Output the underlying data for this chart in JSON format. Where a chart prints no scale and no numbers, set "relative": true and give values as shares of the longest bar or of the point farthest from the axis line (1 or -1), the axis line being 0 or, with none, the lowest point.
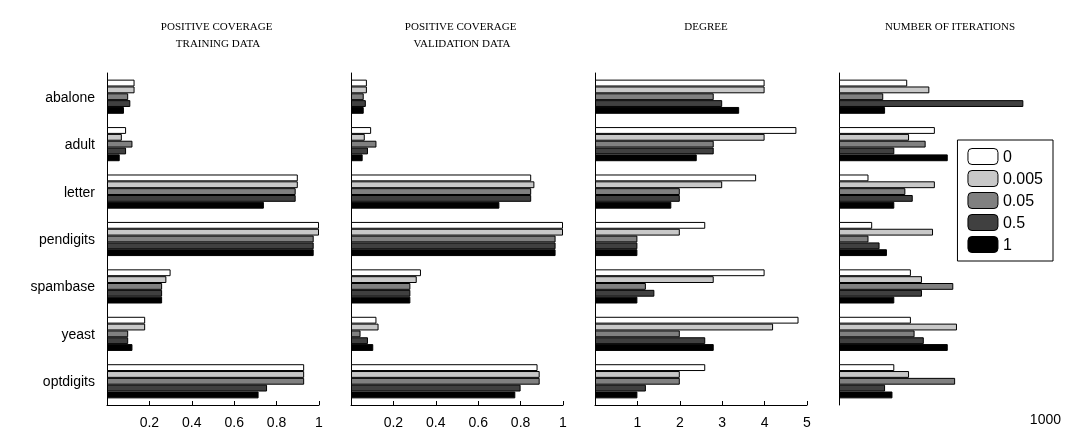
{
  "chart_data": [
    {
      "type": "bar",
      "orientation": "horizontal",
      "title": "POSITIVE COVERAGE TRAINING DATA",
      "categories": [
        "abalone",
        "adult",
        "letter",
        "pendigits",
        "spambase",
        "yeast",
        "optdigits"
      ],
      "xlim": [
        0,
        1
      ],
      "xticks": [
        0.2,
        0.4,
        0.6,
        0.8,
        1
      ],
      "grid": false,
      "legend": false,
      "series": [
        {
          "color": "#ffffff",
          "values": [
            0.13,
            0.09,
            0.9,
            1.0,
            0.3,
            0.18,
            0.93
          ]
        },
        {
          "color": "#c8c8c8",
          "values": [
            0.13,
            0.07,
            0.9,
            1.0,
            0.28,
            0.18,
            0.93
          ]
        },
        {
          "color": "#808080",
          "values": [
            0.1,
            0.12,
            0.89,
            0.975,
            0.26,
            0.1,
            0.93
          ]
        },
        {
          "color": "#404040",
          "values": [
            0.11,
            0.09,
            0.89,
            0.975,
            0.26,
            0.1,
            0.755
          ]
        },
        {
          "color": "#000000",
          "values": [
            0.08,
            0.06,
            0.74,
            0.975,
            0.26,
            0.12,
            0.715
          ]
        }
      ]
    },
    {
      "type": "bar",
      "orientation": "horizontal",
      "title": "POSITIVE COVERAGE VALIDATION DATA",
      "categories": [
        null,
        null,
        null,
        null,
        null,
        null,
        null
      ],
      "xlim": [
        0,
        1
      ],
      "xticks": [
        0.2,
        0.4,
        0.6,
        0.8,
        1
      ],
      "tick_labels": "x",
      "grid": false,
      "legend": false,
      "series": [
        {
          "color": "#ffffff",
          "values": [
            0.075,
            0.095,
            0.85,
            1.0,
            0.33,
            0.12,
            0.88
          ]
        },
        {
          "color": "#c8c8c8",
          "values": [
            0.075,
            0.065,
            0.865,
            1.0,
            0.31,
            0.13,
            0.89
          ]
        },
        {
          "color": "#808080",
          "values": [
            0.06,
            0.12,
            0.85,
            0.965,
            0.28,
            0.045,
            0.89
          ]
        },
        {
          "color": "#404040",
          "values": [
            0.07,
            0.08,
            0.85,
            0.965,
            0.28,
            0.08,
            0.8
          ]
        },
        {
          "color": "#000000",
          "values": [
            0.06,
            0.055,
            0.7,
            0.965,
            0.28,
            0.105,
            0.775
          ]
        }
      ]
    },
    {
      "type": "bar",
      "orientation": "horizontal",
      "title": "DEGREE",
      "categories": [
        null,
        null,
        null,
        null,
        null,
        null,
        null
      ],
      "xlim": [
        0,
        5
      ],
      "xticks": [
        1,
        2,
        3,
        4,
        5
      ],
      "tick_labels": "x",
      "grid": false,
      "legend": false,
      "series": [
        {
          "color": "#ffffff",
          "values": [
            4,
            4.75,
            3.8,
            2.6,
            4,
            4.8,
            2.6
          ]
        },
        {
          "color": "#c8c8c8",
          "values": [
            4,
            4,
            3,
            2,
            2.8,
            4.2,
            2
          ]
        },
        {
          "color": "#808080",
          "values": [
            2.8,
            2.8,
            2,
            1,
            1.2,
            2,
            2
          ]
        },
        {
          "color": "#404040",
          "values": [
            3,
            2.8,
            2,
            1,
            1.4,
            2.6,
            1.2
          ]
        },
        {
          "color": "#000000",
          "values": [
            3.4,
            2.4,
            1.8,
            1,
            1,
            2.8,
            1
          ]
        }
      ]
    },
    {
      "type": "bar",
      "orientation": "horizontal",
      "title": "NUMBER OF ITERATIONS",
      "categories": [
        null,
        null,
        null,
        null,
        null,
        null,
        null
      ],
      "relative": true,
      "annotations": [
        "1000"
      ],
      "tick_labels": "x",
      "grid": false,
      "legend": "right",
      "series": [
        {
          "name": "0",
          "color": "#ffffff",
          "values": [
            0.37,
            0.52,
            0.16,
            0.18,
            0.39,
            0.39,
            0.3
          ]
        },
        {
          "name": "0.005",
          "color": "#c8c8c8",
          "values": [
            0.49,
            0.38,
            0.52,
            0.51,
            0.45,
            0.64,
            0.38
          ]
        },
        {
          "name": "0.05",
          "color": "#808080",
          "values": [
            0.24,
            0.47,
            0.36,
            0.16,
            0.62,
            0.41,
            0.63
          ]
        },
        {
          "name": "0.5",
          "color": "#404040",
          "values": [
            1,
            0.3,
            0.4,
            0.22,
            0.45,
            0.46,
            0.25
          ]
        },
        {
          "name": "1",
          "color": "#000000",
          "values": [
            0.25,
            0.59,
            0.3,
            0.26,
            0.3,
            0.59,
            0.29
          ]
        }
      ]
    }
  ]
}
